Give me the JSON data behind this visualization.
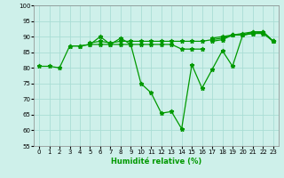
{
  "xlabel": "Humidité relative (%)",
  "background_color": "#cef0ea",
  "grid_color": "#aaddd5",
  "line_color": "#009900",
  "xlim": [
    -0.5,
    23.5
  ],
  "ylim": [
    55,
    100
  ],
  "yticks": [
    55,
    60,
    65,
    70,
    75,
    80,
    85,
    90,
    95,
    100
  ],
  "xticks": [
    0,
    1,
    2,
    3,
    4,
    5,
    6,
    7,
    8,
    9,
    10,
    11,
    12,
    13,
    14,
    15,
    16,
    17,
    18,
    19,
    20,
    21,
    22,
    23
  ],
  "series": [
    [
      80.5,
      80.5,
      80.0,
      87.0,
      87.0,
      87.5,
      90.0,
      87.5,
      89.5,
      87.5,
      75.0,
      72.0,
      65.5,
      66.0,
      60.5,
      81.0,
      73.5,
      79.5,
      85.5,
      80.5,
      90.5,
      91.5,
      91.5,
      88.5
    ],
    [
      null,
      null,
      null,
      87.0,
      87.0,
      87.5,
      87.5,
      87.5,
      87.5,
      87.5,
      87.5,
      87.5,
      87.5,
      87.5,
      86.0,
      86.0,
      86.0,
      null,
      null,
      null,
      null,
      null,
      null,
      null
    ],
    [
      null,
      null,
      null,
      null,
      null,
      null,
      null,
      null,
      null,
      null,
      null,
      null,
      null,
      null,
      null,
      null,
      null,
      88.5,
      89.0,
      90.5,
      90.5,
      91.0,
      91.0,
      88.5
    ],
    [
      null,
      null,
      null,
      null,
      null,
      null,
      null,
      null,
      null,
      null,
      null,
      null,
      null,
      null,
      null,
      null,
      null,
      89.5,
      90.0,
      90.5,
      91.0,
      91.5,
      91.5,
      88.5
    ],
    [
      null,
      null,
      null,
      null,
      null,
      88.0,
      88.5,
      88.0,
      88.5,
      88.5,
      88.5,
      88.5,
      88.5,
      88.5,
      88.5,
      88.5,
      88.5,
      89.0,
      89.5,
      90.5,
      90.5,
      91.0,
      91.5,
      88.5
    ]
  ]
}
